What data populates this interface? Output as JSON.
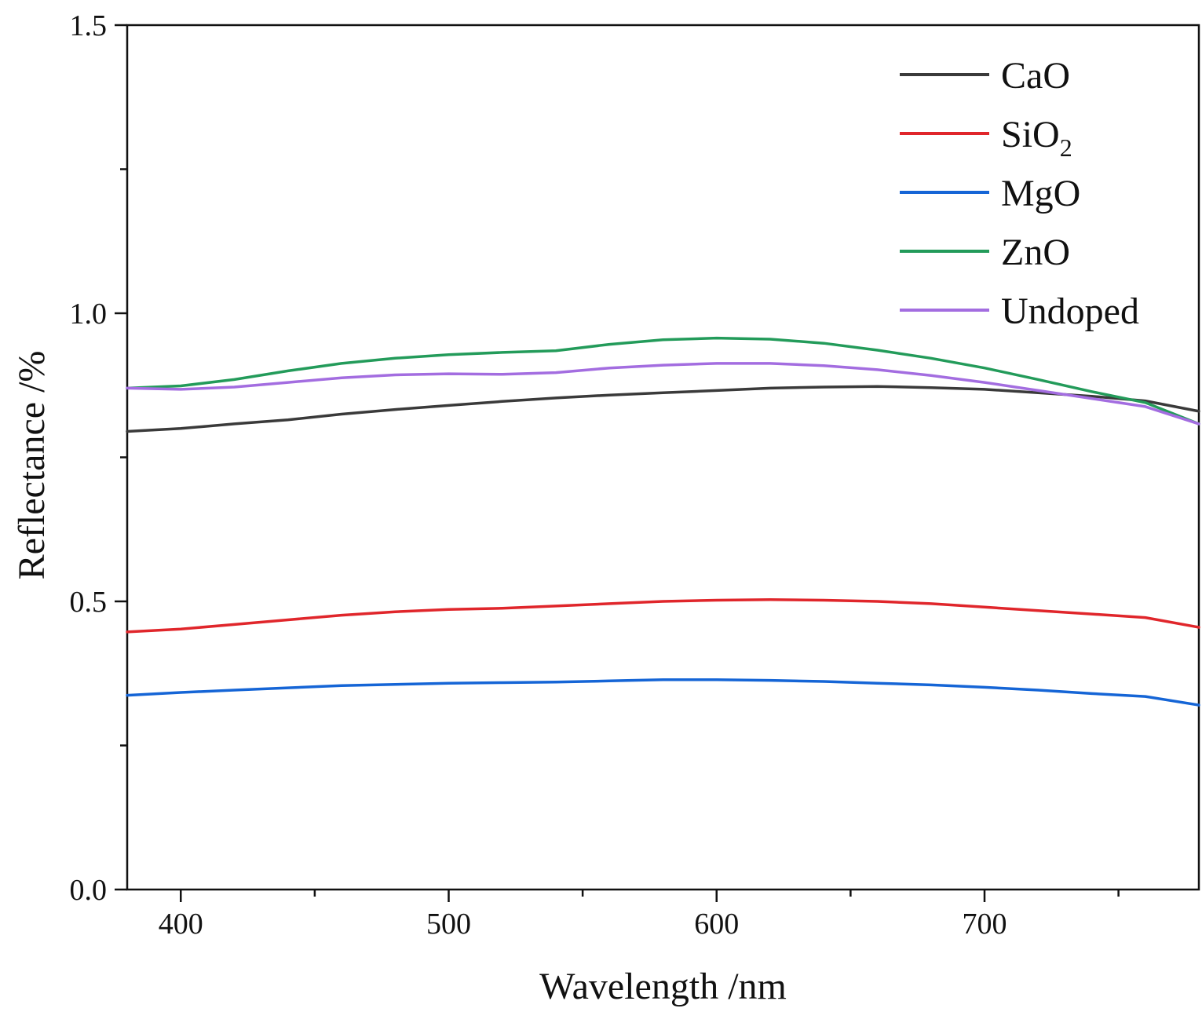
{
  "chart_data": {
    "type": "line",
    "title": "",
    "xlabel": "Wavelength /nm",
    "ylabel": "Reflectance /%",
    "xlim": [
      380,
      780
    ],
    "ylim": [
      0,
      1.5
    ],
    "x_ticks": [
      400,
      500,
      600,
      700
    ],
    "x_tick_labels": [
      "400",
      "500",
      "600",
      "700"
    ],
    "x_minor_ticks": [
      450,
      550,
      650,
      750
    ],
    "y_ticks": [
      0,
      0.5,
      1.0,
      1.5
    ],
    "y_tick_labels": [
      "0.0",
      "0.5",
      "1.0",
      "1.5"
    ],
    "y_minor_ticks": [
      0.25,
      0.75,
      1.25
    ],
    "grid": false,
    "legend_position": "top-right",
    "series": [
      {
        "name": "CaO",
        "legend": {
          "main": "CaO",
          "sub": ""
        },
        "color": "#3a3a3a",
        "x": [
          380,
          400,
          420,
          440,
          460,
          480,
          500,
          520,
          540,
          560,
          580,
          600,
          620,
          640,
          660,
          680,
          700,
          720,
          740,
          760,
          780
        ],
        "values": [
          0.795,
          0.8,
          0.808,
          0.815,
          0.825,
          0.833,
          0.84,
          0.847,
          0.853,
          0.858,
          0.862,
          0.866,
          0.87,
          0.872,
          0.873,
          0.871,
          0.868,
          0.862,
          0.856,
          0.848,
          0.83
        ]
      },
      {
        "name": "SiO2",
        "legend": {
          "main": "SiO",
          "sub": "2"
        },
        "color": "#e0262b",
        "x": [
          380,
          400,
          420,
          440,
          460,
          480,
          500,
          520,
          540,
          560,
          580,
          600,
          620,
          640,
          660,
          680,
          700,
          720,
          740,
          760,
          780
        ],
        "values": [
          0.447,
          0.452,
          0.46,
          0.468,
          0.476,
          0.482,
          0.486,
          0.488,
          0.492,
          0.496,
          0.5,
          0.502,
          0.503,
          0.502,
          0.5,
          0.496,
          0.49,
          0.484,
          0.478,
          0.472,
          0.455
        ]
      },
      {
        "name": "MgO",
        "legend": {
          "main": "MgO",
          "sub": ""
        },
        "color": "#1565d6",
        "x": [
          380,
          400,
          420,
          440,
          460,
          480,
          500,
          520,
          540,
          560,
          580,
          600,
          620,
          640,
          660,
          680,
          700,
          720,
          740,
          760,
          780
        ],
        "values": [
          0.337,
          0.342,
          0.346,
          0.35,
          0.354,
          0.356,
          0.358,
          0.359,
          0.36,
          0.362,
          0.364,
          0.364,
          0.363,
          0.361,
          0.358,
          0.355,
          0.351,
          0.346,
          0.34,
          0.335,
          0.32
        ]
      },
      {
        "name": "ZnO",
        "legend": {
          "main": "ZnO",
          "sub": ""
        },
        "color": "#239b5a",
        "x": [
          380,
          400,
          420,
          440,
          460,
          480,
          500,
          520,
          540,
          560,
          580,
          600,
          620,
          640,
          660,
          680,
          700,
          720,
          740,
          760,
          780
        ],
        "values": [
          0.87,
          0.874,
          0.885,
          0.9,
          0.913,
          0.922,
          0.928,
          0.932,
          0.935,
          0.946,
          0.954,
          0.957,
          0.955,
          0.948,
          0.936,
          0.922,
          0.905,
          0.885,
          0.864,
          0.845,
          0.808
        ]
      },
      {
        "name": "Undoped",
        "legend": {
          "main": "Undoped",
          "sub": ""
        },
        "color": "#a36de0",
        "x": [
          380,
          400,
          420,
          440,
          460,
          480,
          500,
          520,
          540,
          560,
          580,
          600,
          620,
          640,
          660,
          680,
          700,
          720,
          740,
          760,
          780
        ],
        "values": [
          0.87,
          0.868,
          0.872,
          0.88,
          0.888,
          0.893,
          0.895,
          0.894,
          0.897,
          0.905,
          0.91,
          0.913,
          0.913,
          0.909,
          0.902,
          0.892,
          0.88,
          0.866,
          0.852,
          0.838,
          0.808
        ]
      }
    ]
  }
}
